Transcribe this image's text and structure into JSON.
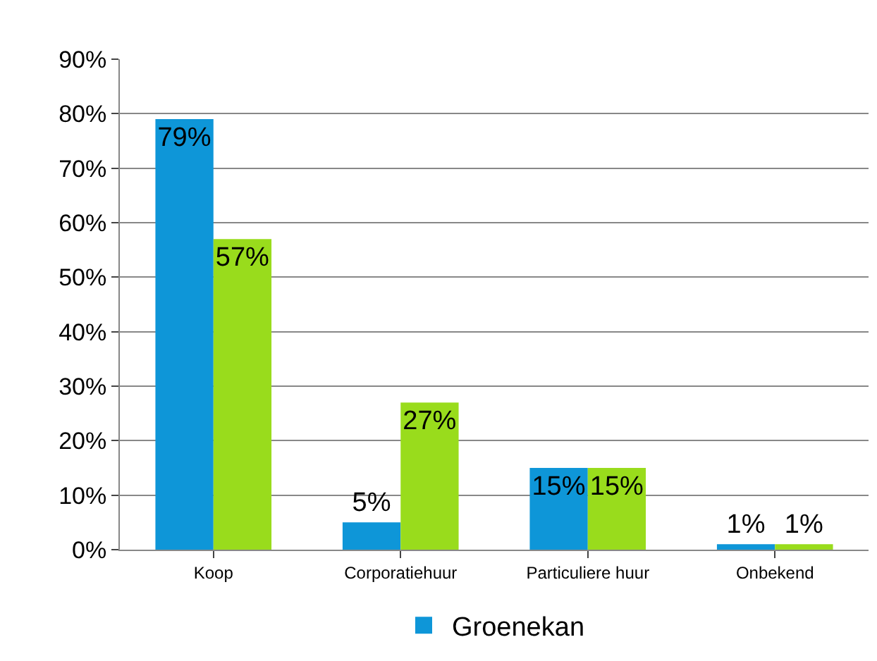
{
  "chart_data": {
    "type": "bar",
    "categories": [
      "Koop",
      "Corporatiehuur",
      "Particuliere huur",
      "Onbekend"
    ],
    "series": [
      {
        "name": "Groenekan",
        "color": "#0e96d8",
        "values": [
          79,
          5,
          15,
          1
        ],
        "value_labels": [
          "79%",
          "5%",
          "15%",
          "1%"
        ]
      },
      {
        "color": "#99dc1c",
        "values": [
          57,
          27,
          15,
          1
        ],
        "value_labels": [
          "57%",
          "27%",
          "15%",
          "1%"
        ]
      }
    ],
    "ylim": [
      0,
      90
    ],
    "yticks": [
      {
        "value": 0,
        "label": "0%"
      },
      {
        "value": 10,
        "label": "10%"
      },
      {
        "value": 20,
        "label": "20%"
      },
      {
        "value": 30,
        "label": "30%"
      },
      {
        "value": 40,
        "label": "40%"
      },
      {
        "value": 50,
        "label": "50%"
      },
      {
        "value": 60,
        "label": "60%"
      },
      {
        "value": 70,
        "label": "70%"
      },
      {
        "value": 80,
        "label": "80%"
      },
      {
        "value": 90,
        "label": "90%"
      }
    ],
    "grid": "y",
    "legend": "bottom"
  }
}
